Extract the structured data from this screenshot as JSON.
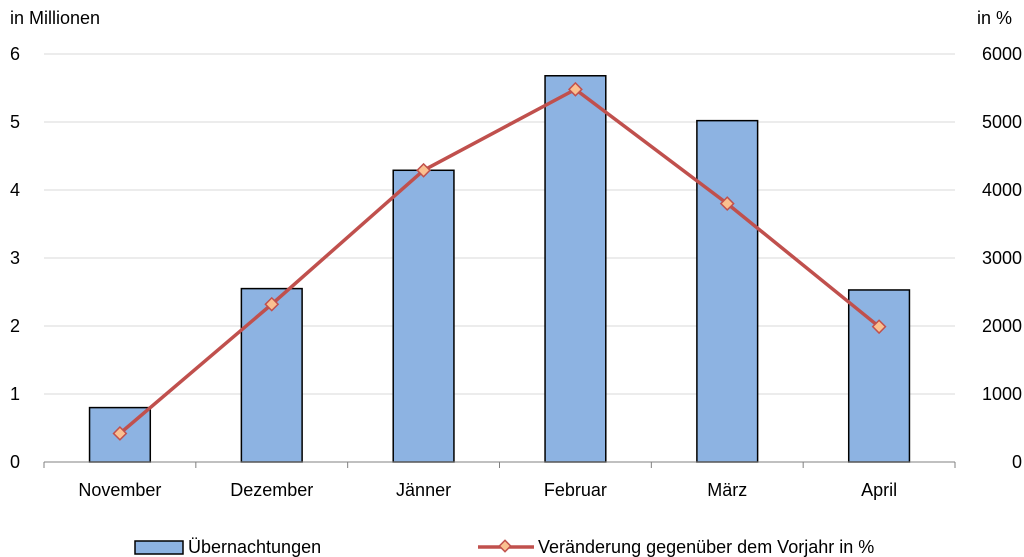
{
  "chart_data": {
    "type": "bar",
    "categories": [
      "November",
      "Dezember",
      "Jänner",
      "Februar",
      "März",
      "April"
    ],
    "series": [
      {
        "name": "Übernachtungen",
        "type": "bar",
        "axis": "left",
        "values": [
          0.8,
          2.55,
          4.29,
          5.68,
          5.02,
          2.53
        ]
      },
      {
        "name": "Veränderung gegenüber dem Vorjahr in %",
        "type": "line",
        "axis": "right",
        "values": [
          420,
          2320,
          4290,
          5480,
          3800,
          1990
        ]
      }
    ],
    "y_left": {
      "label": "in Millionen",
      "min": 0,
      "max": 6,
      "ticks": [
        "0",
        "1",
        "2",
        "3",
        "4",
        "5",
        "6"
      ]
    },
    "y_right": {
      "label": "in %",
      "min": 0,
      "max": 6000,
      "ticks": [
        "0",
        "1000",
        "2000",
        "3000",
        "4000",
        "5000",
        "6000"
      ]
    },
    "grid": true,
    "legend": "bottom",
    "colors": {
      "bar_fill": "#8DB3E2",
      "bar_stroke": "#000000",
      "line": "#C0504D",
      "marker_fill": "#FAC090",
      "marker_stroke": "#C0504D",
      "grid": "#D9D9D9",
      "axis": "#808080"
    }
  }
}
